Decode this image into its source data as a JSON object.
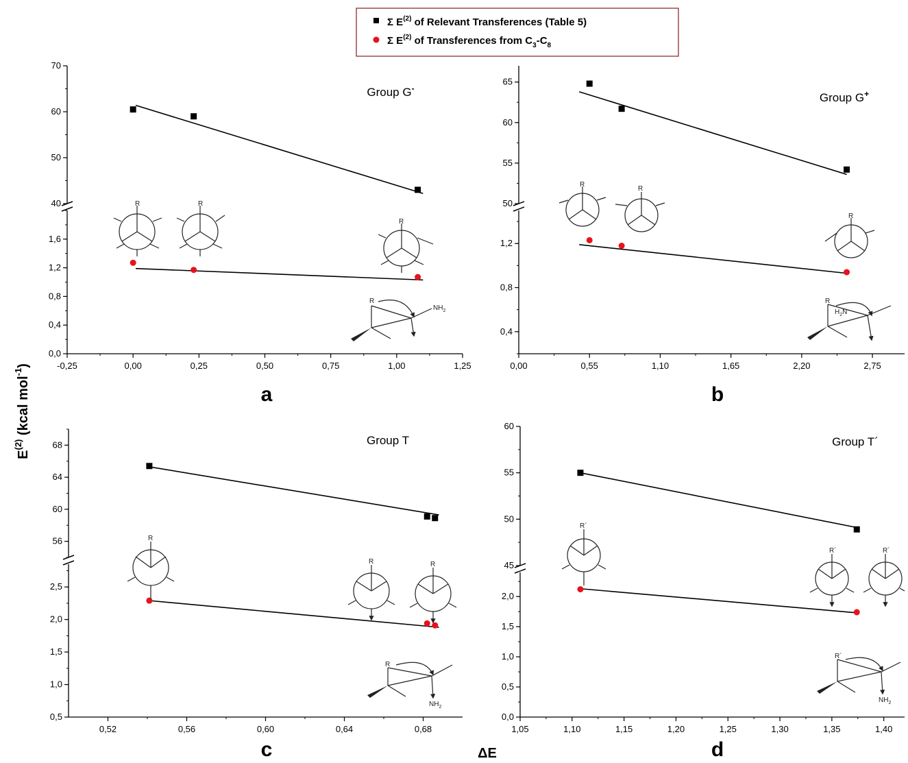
{
  "legend": {
    "items": [
      {
        "symbol": "square",
        "color": "#000000",
        "prefix": "Σ E",
        "sup": "(2)",
        "text": " of Relevant Transferences (Table 5)"
      },
      {
        "symbol": "circle",
        "color": "#e8121c",
        "prefix": "Σ E",
        "sup": "(2)",
        "text": " of Transferences from C",
        "sub1": "3",
        "mid": "-C",
        "sub2": "8"
      }
    ]
  },
  "ylabel": {
    "main": "E",
    "sup": "(2)",
    "unit": " (kcal mol",
    "unitsup": "-1",
    "close": ")"
  },
  "xlabel": "ΔE",
  "chart_data": [
    {
      "type": "scatter",
      "panel": "a",
      "title": "Group G",
      "title_sup": "-",
      "xlim": [
        -0.25,
        1.25
      ],
      "xticks": [
        "-0,25",
        "0,00",
        "0,25",
        "0,50",
        "0,75",
        "1,00",
        "1,25"
      ],
      "upper": {
        "ylim": [
          40,
          70
        ],
        "yticks": [
          "40",
          "50",
          "60",
          "70"
        ],
        "x": [
          0.0,
          0.23,
          1.08
        ],
        "y": [
          60.5,
          59.0,
          43.0
        ],
        "fit": [
          [
            0.01,
            61.4
          ],
          [
            1.1,
            42.2
          ]
        ]
      },
      "lower": {
        "ylim": [
          0,
          2.0
        ],
        "yticks": [
          "0,0",
          "0,4",
          "0,8",
          "1,2",
          "1,6"
        ],
        "x": [
          0.0,
          0.23,
          1.08
        ],
        "y": [
          1.27,
          1.17,
          1.07
        ],
        "fit": [
          [
            0.01,
            1.19
          ],
          [
            1.1,
            1.03
          ]
        ]
      }
    },
    {
      "type": "scatter",
      "panel": "b",
      "title": "Group G",
      "title_sup": "+",
      "xlim": [
        0.0,
        3.0
      ],
      "xticks": [
        "0,00",
        "0,55",
        "1,10",
        "1,65",
        "2,20",
        "2,75"
      ],
      "upper": {
        "ylim": [
          50,
          67
        ],
        "yticks": [
          "50",
          "55",
          "60",
          "65"
        ],
        "x": [
          0.55,
          0.8,
          2.55
        ],
        "y": [
          64.8,
          61.7,
          54.2
        ],
        "fit": [
          [
            0.47,
            63.8
          ],
          [
            2.55,
            53.6
          ]
        ]
      },
      "lower": {
        "ylim": [
          0.2,
          1.5
        ],
        "yticks": [
          "0,4",
          "0,8",
          "1,2"
        ],
        "x": [
          0.55,
          0.8,
          2.55
        ],
        "y": [
          1.23,
          1.18,
          0.94
        ],
        "fit": [
          [
            0.47,
            1.19
          ],
          [
            2.55,
            0.93
          ]
        ]
      }
    },
    {
      "type": "scatter",
      "panel": "c",
      "title": "Group T",
      "title_sup": "",
      "xlim": [
        0.5,
        0.7
      ],
      "xticks": [
        "0,52",
        "0,56",
        "0,60",
        "0,64",
        "0,68"
      ],
      "upper": {
        "ylim": [
          54,
          70
        ],
        "yticks": [
          "56",
          "60",
          "64",
          "68"
        ],
        "x": [
          0.541,
          0.682,
          0.686
        ],
        "y": [
          65.4,
          59.1,
          58.9
        ],
        "fit": [
          [
            0.541,
            65.3
          ],
          [
            0.688,
            59.3
          ]
        ]
      },
      "lower": {
        "ylim": [
          0.5,
          2.85
        ],
        "yticks": [
          "0,5",
          "1,0",
          "1,5",
          "2,0",
          "2,5"
        ],
        "x": [
          0.541,
          0.682,
          0.686
        ],
        "y": [
          2.29,
          1.94,
          1.91
        ],
        "fit": [
          [
            0.541,
            2.29
          ],
          [
            0.688,
            1.88
          ]
        ]
      }
    },
    {
      "type": "scatter",
      "panel": "d",
      "title": "Group T´",
      "title_sup": "",
      "xlim": [
        1.05,
        1.42
      ],
      "xticks": [
        "1,05",
        "1,10",
        "1,15",
        "1,20",
        "1,25",
        "1,30",
        "1,35",
        "1,40"
      ],
      "upper": {
        "ylim": [
          45,
          60
        ],
        "yticks": [
          "45",
          "50",
          "55",
          "60"
        ],
        "x": [
          1.108,
          1.374
        ],
        "y": [
          55.0,
          48.9
        ],
        "fit": [
          [
            1.108,
            55.0
          ],
          [
            1.374,
            49.1
          ]
        ]
      },
      "lower": {
        "ylim": [
          0,
          2.4
        ],
        "yticks": [
          "0,0",
          "0,5",
          "1,0",
          "1,5",
          "2,0"
        ],
        "x": [
          1.108,
          1.374
        ],
        "y": [
          2.12,
          1.74
        ],
        "fit": [
          [
            1.108,
            2.13
          ],
          [
            1.374,
            1.73
          ]
        ]
      }
    }
  ],
  "molecule_labels": {
    "R": "R",
    "Rp": "R´",
    "NH2": "NH",
    "NH2sub": "2",
    "H2N_H": "H",
    "H2N_sub": "2",
    "H2N_N": "N"
  }
}
